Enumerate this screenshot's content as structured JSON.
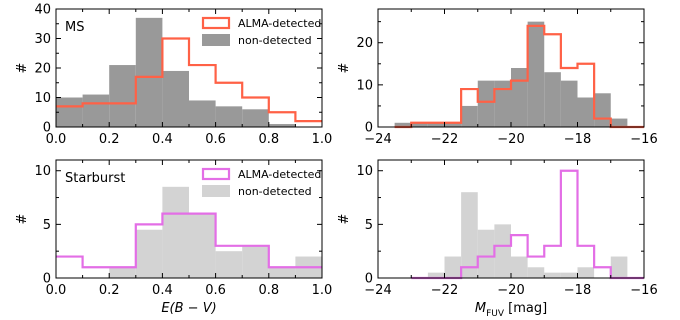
{
  "chart_data": [
    {
      "type": "bar",
      "panel_label": "MS",
      "xlim": [
        0,
        1
      ],
      "ylim": [
        0,
        40
      ],
      "xticks": [
        "0.0",
        "0.2",
        "0.4",
        "0.6",
        "0.8",
        "1.0"
      ],
      "yticks": [
        "0",
        "10",
        "20",
        "30",
        "40"
      ],
      "xlabel": "",
      "ylabel": "#",
      "legend_position": "top-right",
      "series": [
        {
          "name": "non-detected",
          "style": "filled",
          "color": "#999999",
          "bins": [
            [
              0.0,
              0.1
            ],
            [
              0.1,
              0.2
            ],
            [
              0.2,
              0.3
            ],
            [
              0.3,
              0.4
            ],
            [
              0.4,
              0.5
            ],
            [
              0.5,
              0.6
            ],
            [
              0.6,
              0.7
            ],
            [
              0.7,
              0.8
            ],
            [
              0.8,
              0.9
            ],
            [
              0.9,
              1.0
            ]
          ],
          "values": [
            10,
            11,
            21,
            37,
            19,
            9,
            7,
            6,
            1,
            0
          ]
        },
        {
          "name": "ALMA-detected",
          "style": "step",
          "color": "#ff6146",
          "bins": [
            [
              0.0,
              0.1
            ],
            [
              0.1,
              0.2
            ],
            [
              0.2,
              0.3
            ],
            [
              0.3,
              0.4
            ],
            [
              0.4,
              0.5
            ],
            [
              0.5,
              0.6
            ],
            [
              0.6,
              0.7
            ],
            [
              0.7,
              0.8
            ],
            [
              0.8,
              0.9
            ],
            [
              0.9,
              1.0
            ]
          ],
          "values": [
            7,
            8,
            8,
            17,
            30,
            21,
            15,
            10,
            5,
            2
          ]
        }
      ]
    },
    {
      "type": "bar",
      "panel_label": "",
      "xlim": [
        -24,
        -16
      ],
      "ylim": [
        0,
        28
      ],
      "xticks": [
        "−24",
        "−22",
        "−20",
        "−18",
        "−16"
      ],
      "yticks": [
        "0",
        "10",
        "20"
      ],
      "xlabel": "",
      "ylabel": "#",
      "series": [
        {
          "name": "non-detected",
          "style": "filled",
          "color": "#999999",
          "bins": [
            [
              -23.5,
              -23.0
            ],
            [
              -23.0,
              -22.5
            ],
            [
              -22.5,
              -22.0
            ],
            [
              -22.0,
              -21.5
            ],
            [
              -21.5,
              -21.0
            ],
            [
              -21.0,
              -20.5
            ],
            [
              -20.5,
              -20.0
            ],
            [
              -20.0,
              -19.5
            ],
            [
              -19.5,
              -19.0
            ],
            [
              -19.0,
              -18.5
            ],
            [
              -18.5,
              -18.0
            ],
            [
              -18.0,
              -17.5
            ],
            [
              -17.5,
              -17.0
            ],
            [
              -17.0,
              -16.5
            ],
            [
              -16.5,
              -16.0
            ]
          ],
          "values": [
            1,
            1,
            1,
            1,
            5,
            11,
            11,
            14,
            25,
            13,
            11,
            7,
            8,
            2,
            0
          ]
        },
        {
          "name": "ALMA-detected",
          "style": "step",
          "color": "#ff6146",
          "bins": [
            [
              -23.5,
              -23.0
            ],
            [
              -23.0,
              -22.5
            ],
            [
              -22.5,
              -22.0
            ],
            [
              -22.0,
              -21.5
            ],
            [
              -21.5,
              -21.0
            ],
            [
              -21.0,
              -20.5
            ],
            [
              -20.5,
              -20.0
            ],
            [
              -20.0,
              -19.5
            ],
            [
              -19.5,
              -19.0
            ],
            [
              -19.0,
              -18.5
            ],
            [
              -18.5,
              -18.0
            ],
            [
              -18.0,
              -17.5
            ],
            [
              -17.5,
              -17.0
            ],
            [
              -17.0,
              -16.5
            ],
            [
              -16.5,
              -16.0
            ]
          ],
          "values": [
            0,
            1,
            1,
            1,
            9,
            6,
            9,
            11,
            24,
            22,
            14,
            15,
            2,
            0,
            0
          ]
        }
      ]
    },
    {
      "type": "bar",
      "panel_label": "Starburst",
      "xlim": [
        0,
        1
      ],
      "ylim": [
        0,
        11
      ],
      "xticks": [
        "0.0",
        "0.2",
        "0.4",
        "0.6",
        "0.8",
        "1.0"
      ],
      "yticks": [
        "0",
        "5",
        "10"
      ],
      "xlabel": "E(B − V)",
      "ylabel": "#",
      "legend_position": "top-right",
      "series": [
        {
          "name": "non-detected",
          "style": "filled",
          "color": "#d3d3d3",
          "bins": [
            [
              0.0,
              0.1
            ],
            [
              0.1,
              0.2
            ],
            [
              0.2,
              0.3
            ],
            [
              0.3,
              0.4
            ],
            [
              0.4,
              0.5
            ],
            [
              0.5,
              0.6
            ],
            [
              0.6,
              0.7
            ],
            [
              0.7,
              0.8
            ],
            [
              0.8,
              0.9
            ],
            [
              0.9,
              1.0
            ]
          ],
          "values": [
            0,
            0,
            1,
            4.5,
            8.5,
            6,
            2.5,
            3,
            1,
            2
          ]
        },
        {
          "name": "ALMA-detected",
          "style": "step",
          "color": "#e36ee6",
          "bins": [
            [
              0.0,
              0.1
            ],
            [
              0.1,
              0.2
            ],
            [
              0.2,
              0.3
            ],
            [
              0.3,
              0.4
            ],
            [
              0.4,
              0.5
            ],
            [
              0.5,
              0.6
            ],
            [
              0.6,
              0.7
            ],
            [
              0.7,
              0.8
            ],
            [
              0.8,
              0.9
            ],
            [
              0.9,
              1.0
            ]
          ],
          "values": [
            2,
            1,
            1,
            5,
            6,
            6,
            3,
            3,
            1,
            1
          ]
        }
      ]
    },
    {
      "type": "bar",
      "panel_label": "",
      "xlim": [
        -24,
        -16
      ],
      "ylim": [
        0,
        11
      ],
      "xticks": [
        "−24",
        "−22",
        "−20",
        "−18",
        "−16"
      ],
      "yticks": [
        "0",
        "5",
        "10"
      ],
      "xlabel": "M_FUV [mag]",
      "xlabel_main": "M",
      "xlabel_sub": "FUV",
      "xlabel_unit": " [mag]",
      "ylabel": "#",
      "series": [
        {
          "name": "non-detected",
          "style": "filled",
          "color": "#d3d3d3",
          "bins": [
            [
              -23.0,
              -22.5
            ],
            [
              -22.5,
              -22.0
            ],
            [
              -22.0,
              -21.5
            ],
            [
              -21.5,
              -21.0
            ],
            [
              -21.0,
              -20.5
            ],
            [
              -20.5,
              -20.0
            ],
            [
              -20.0,
              -19.5
            ],
            [
              -19.5,
              -19.0
            ],
            [
              -19.0,
              -18.5
            ],
            [
              -18.5,
              -18.0
            ],
            [
              -18.0,
              -17.5
            ],
            [
              -17.5,
              -17.0
            ],
            [
              -17.0,
              -16.5
            ],
            [
              -16.5,
              -16.0
            ]
          ],
          "values": [
            0,
            0.5,
            2,
            8,
            4.5,
            5,
            2,
            1,
            0.5,
            0.5,
            1,
            0,
            2,
            0
          ]
        },
        {
          "name": "ALMA-detected",
          "style": "step",
          "color": "#e36ee6",
          "bins": [
            [
              -23.0,
              -22.5
            ],
            [
              -22.5,
              -22.0
            ],
            [
              -22.0,
              -21.5
            ],
            [
              -21.5,
              -21.0
            ],
            [
              -21.0,
              -20.5
            ],
            [
              -20.5,
              -20.0
            ],
            [
              -20.0,
              -19.5
            ],
            [
              -19.5,
              -19.0
            ],
            [
              -19.0,
              -18.5
            ],
            [
              -18.5,
              -18.0
            ],
            [
              -18.0,
              -17.5
            ],
            [
              -17.5,
              -17.0
            ],
            [
              -17.0,
              -16.5
            ],
            [
              -16.5,
              -16.0
            ]
          ],
          "values": [
            0,
            0,
            0,
            1,
            2,
            3,
            4,
            2,
            3,
            10,
            3,
            1,
            0,
            0
          ]
        }
      ]
    }
  ]
}
